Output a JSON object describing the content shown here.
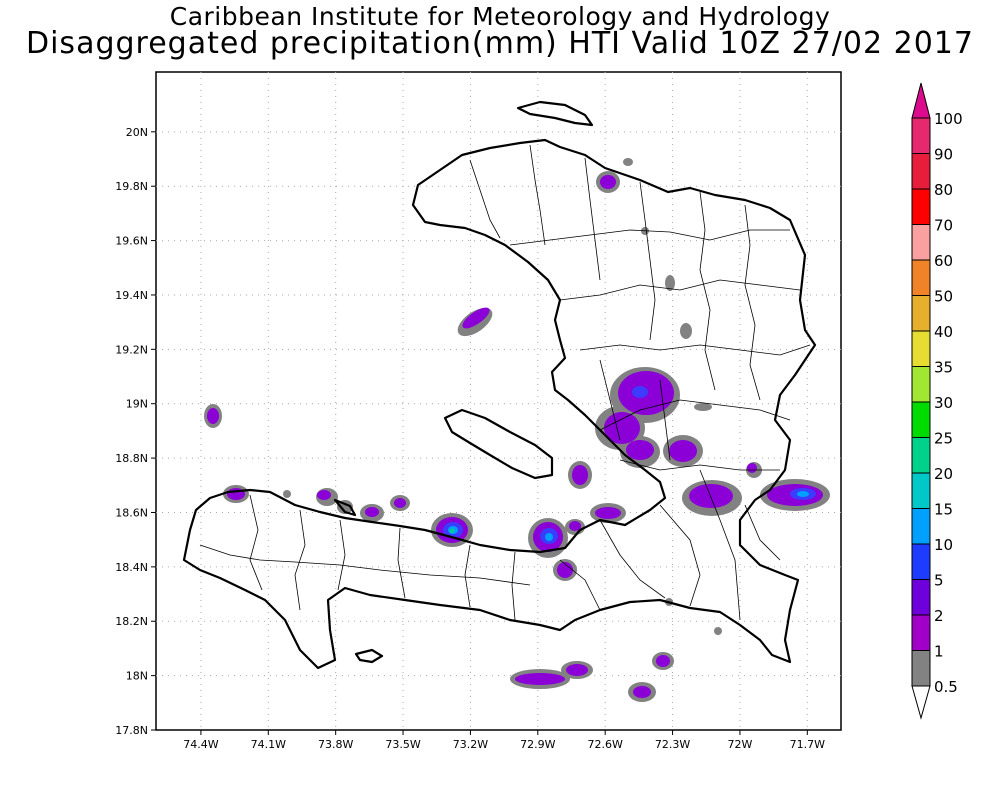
{
  "title": {
    "line1": "Caribbean Institute for Meteorology and Hydrology",
    "line2": "Disaggregated precipitation(mm) HTI Valid 10Z 27/02 2017"
  },
  "map": {
    "x_ticks": [
      {
        "lon": -74.4,
        "label": "74.4W"
      },
      {
        "lon": -74.1,
        "label": "74.1W"
      },
      {
        "lon": -73.8,
        "label": "73.8W"
      },
      {
        "lon": -73.5,
        "label": "73.5W"
      },
      {
        "lon": -73.2,
        "label": "73.2W"
      },
      {
        "lon": -72.9,
        "label": "72.9W"
      },
      {
        "lon": -72.6,
        "label": "72.6W"
      },
      {
        "lon": -72.3,
        "label": "72.3W"
      },
      {
        "lon": -72.0,
        "label": "72W"
      },
      {
        "lon": -71.7,
        "label": "71.7W"
      }
    ],
    "y_ticks": [
      {
        "lat": 20.0,
        "label": "20N"
      },
      {
        "lat": 19.8,
        "label": "19.8N"
      },
      {
        "lat": 19.6,
        "label": "19.6N"
      },
      {
        "lat": 19.4,
        "label": "19.4N"
      },
      {
        "lat": 19.2,
        "label": "19.2N"
      },
      {
        "lat": 19.0,
        "label": "19N"
      },
      {
        "lat": 18.8,
        "label": "18.8N"
      },
      {
        "lat": 18.6,
        "label": "18.6N"
      },
      {
        "lat": 18.4,
        "label": "18.4N"
      },
      {
        "lat": 18.2,
        "label": "18.2N"
      },
      {
        "lat": 18.0,
        "label": "18N"
      },
      {
        "lat": 17.8,
        "label": "17.8N"
      }
    ],
    "extent": {
      "lon_min": -74.6,
      "lon_max": -71.55,
      "lat_min": 17.8,
      "lat_max": 20.22
    },
    "grid": true,
    "colors": {
      "background": "#ffffff",
      "frame": "#000000",
      "grid": "#aaaaaa"
    }
  },
  "colorbar": {
    "labels": [
      "0.5",
      "1",
      "2",
      "5",
      "10",
      "15",
      "20",
      "25",
      "30",
      "35",
      "40",
      "50",
      "60",
      "70",
      "80",
      "90",
      "100"
    ],
    "colors": [
      "#828282",
      "#a000c8",
      "#6e00dc",
      "#1e3cff",
      "#00a0ff",
      "#00c8c8",
      "#00d28c",
      "#00dc00",
      "#a0e632",
      "#e6dc32",
      "#e6af2d",
      "#f08228",
      "#faa0a0",
      "#ff0000",
      "#e61e3c",
      "#e6286e",
      "#dc0a8c"
    ],
    "low_triangle_color": "#ffffff"
  }
}
